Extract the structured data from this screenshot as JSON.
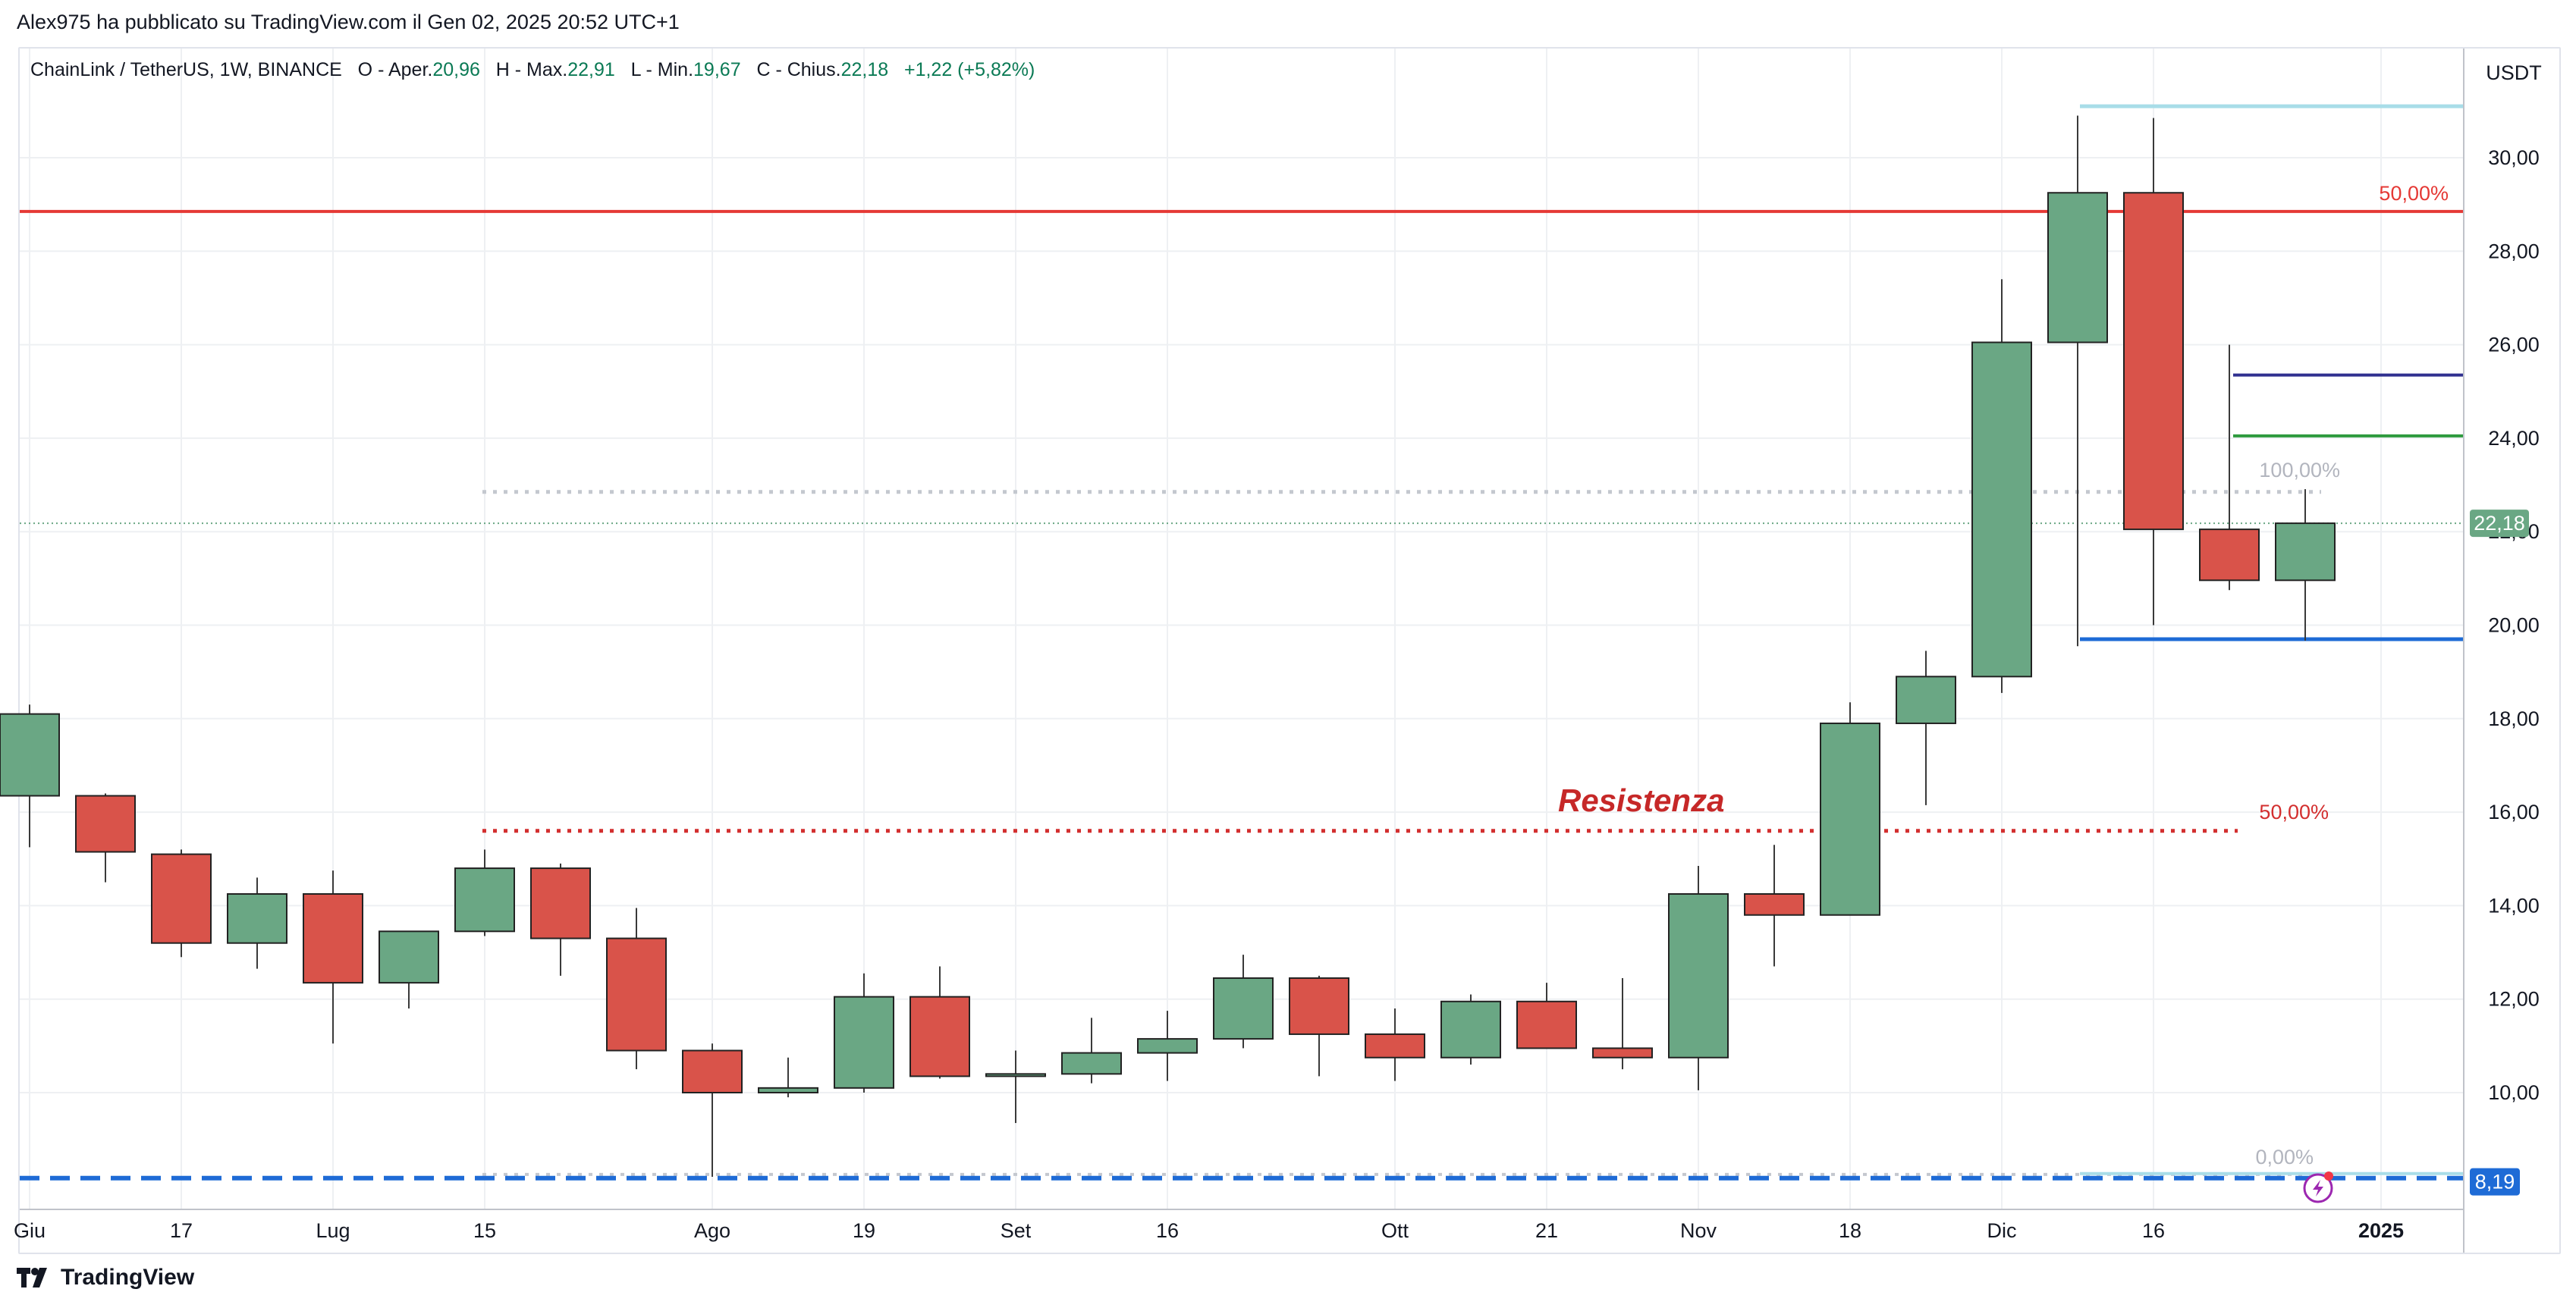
{
  "header": {
    "publisher_line": "Alex975 ha pubblicato su TradingView.com il Gen 02, 2025 20:52 UTC+1"
  },
  "legend": {
    "symbol": "ChainLink / TetherUS, 1W, BINANCE",
    "o_label": "O - Aper.",
    "o_value": "20,96",
    "h_label": "H - Max.",
    "h_value": "22,91",
    "l_label": "L - Min.",
    "l_value": "19,67",
    "c_label": "C - Chius.",
    "c_value": "22,18",
    "change": "+1,22 (+5,82%)"
  },
  "footer": {
    "brand": "TradingView"
  },
  "colors": {
    "up": "#6aa784",
    "down": "#d9534a",
    "resistance": "#c62828",
    "fib_high": "#e53935",
    "support_blue": "#1e6bd6",
    "grid": "#eef0f3"
  },
  "chart_data": {
    "type": "candlestick",
    "currency_label": "USDT",
    "ylim": [
      7.4,
      31.8
    ],
    "y_ticks": [
      {
        "value": 10,
        "label": "10,00"
      },
      {
        "value": 12,
        "label": "12,00"
      },
      {
        "value": 14,
        "label": "14,00"
      },
      {
        "value": 16,
        "label": "16,00"
      },
      {
        "value": 18,
        "label": "18,00"
      },
      {
        "value": 20,
        "label": "20,00"
      },
      {
        "value": 22,
        "label": "22,00"
      },
      {
        "value": 24,
        "label": "24,00"
      },
      {
        "value": 26,
        "label": "26,00"
      },
      {
        "value": 28,
        "label": "28,00"
      },
      {
        "value": 30,
        "label": "30,00"
      }
    ],
    "x_ticks": [
      {
        "index": 0,
        "label": "Giu"
      },
      {
        "index": 2,
        "label": "17"
      },
      {
        "index": 4,
        "label": "Lug"
      },
      {
        "index": 6,
        "label": "15"
      },
      {
        "index": 9,
        "label": "Ago"
      },
      {
        "index": 11,
        "label": "19"
      },
      {
        "index": 13,
        "label": "Set"
      },
      {
        "index": 15,
        "label": "16"
      },
      {
        "index": 18,
        "label": "Ott"
      },
      {
        "index": 20,
        "label": "21"
      },
      {
        "index": 22,
        "label": "Nov"
      },
      {
        "index": 24,
        "label": "18"
      },
      {
        "index": 26,
        "label": "Dic"
      },
      {
        "index": 28,
        "label": "16"
      },
      {
        "index": 31,
        "label": "2025"
      }
    ],
    "candles": [
      {
        "o": 16.35,
        "h": 18.3,
        "l": 15.25,
        "c": 18.1
      },
      {
        "o": 16.35,
        "h": 16.4,
        "l": 14.5,
        "c": 15.15
      },
      {
        "o": 15.1,
        "h": 15.2,
        "l": 12.9,
        "c": 13.2
      },
      {
        "o": 13.2,
        "h": 14.6,
        "l": 12.65,
        "c": 14.25
      },
      {
        "o": 14.25,
        "h": 14.75,
        "l": 11.05,
        "c": 12.35
      },
      {
        "o": 12.35,
        "h": 13.45,
        "l": 11.8,
        "c": 13.45
      },
      {
        "o": 13.45,
        "h": 15.2,
        "l": 13.35,
        "c": 14.8
      },
      {
        "o": 14.8,
        "h": 14.9,
        "l": 12.5,
        "c": 13.3
      },
      {
        "o": 13.3,
        "h": 13.95,
        "l": 10.5,
        "c": 10.9
      },
      {
        "o": 10.9,
        "h": 11.05,
        "l": 8.2,
        "c": 10.0
      },
      {
        "o": 10.0,
        "h": 10.75,
        "l": 9.9,
        "c": 10.1
      },
      {
        "o": 10.1,
        "h": 12.55,
        "l": 10.0,
        "c": 12.05
      },
      {
        "o": 12.05,
        "h": 12.7,
        "l": 10.3,
        "c": 10.35
      },
      {
        "o": 10.35,
        "h": 10.9,
        "l": 9.35,
        "c": 10.4
      },
      {
        "o": 10.4,
        "h": 11.6,
        "l": 10.2,
        "c": 10.85
      },
      {
        "o": 10.85,
        "h": 11.75,
        "l": 10.25,
        "c": 11.15
      },
      {
        "o": 11.15,
        "h": 12.95,
        "l": 10.95,
        "c": 12.45
      },
      {
        "o": 12.45,
        "h": 12.5,
        "l": 10.35,
        "c": 11.25
      },
      {
        "o": 11.25,
        "h": 11.8,
        "l": 10.25,
        "c": 10.75
      },
      {
        "o": 10.75,
        "h": 12.1,
        "l": 10.6,
        "c": 11.95
      },
      {
        "o": 11.95,
        "h": 12.35,
        "l": 10.95,
        "c": 10.95
      },
      {
        "o": 10.95,
        "h": 12.45,
        "l": 10.5,
        "c": 10.75
      },
      {
        "o": 10.75,
        "h": 14.85,
        "l": 10.05,
        "c": 14.25
      },
      {
        "o": 14.25,
        "h": 15.3,
        "l": 12.7,
        "c": 13.8
      },
      {
        "o": 13.8,
        "h": 18.35,
        "l": 13.8,
        "c": 17.9
      },
      {
        "o": 17.9,
        "h": 19.45,
        "l": 16.15,
        "c": 18.9
      },
      {
        "o": 18.9,
        "h": 27.4,
        "l": 18.55,
        "c": 26.05
      },
      {
        "o": 26.05,
        "h": 30.9,
        "l": 19.55,
        "c": 29.25
      },
      {
        "o": 29.25,
        "h": 30.85,
        "l": 20.0,
        "c": 22.05
      },
      {
        "o": 22.05,
        "h": 26.0,
        "l": 20.75,
        "c": 20.96
      },
      {
        "o": 20.96,
        "h": 22.91,
        "l": 19.67,
        "c": 22.18
      }
    ],
    "lines": [
      {
        "value": 28.85,
        "label": "50,00%",
        "color": "#e53935"
      },
      {
        "value": 15.6,
        "label": "50,00%",
        "color": "#d32f2f"
      },
      {
        "value": 22.85,
        "label": "100,00%",
        "color": "#c4c8cf"
      },
      {
        "value": 8.25,
        "label": "0,00%",
        "color": "#c4c8cf"
      },
      {
        "value": 31.1,
        "color": "#a8dde8"
      },
      {
        "value": 19.7,
        "color": "#1e6bd6"
      },
      {
        "value": 25.35,
        "color": "#303090"
      },
      {
        "value": 24.05,
        "color": "#2e9a3e"
      },
      {
        "value": 8.3,
        "color": "#1e6bd6"
      },
      {
        "value": 22.18,
        "color": "#6aa784"
      }
    ],
    "annotation": "Resistenza",
    "last_price": {
      "value": 22.18,
      "label": "22,18"
    },
    "marker_price": {
      "value": 8.19,
      "label": "8,19"
    }
  }
}
